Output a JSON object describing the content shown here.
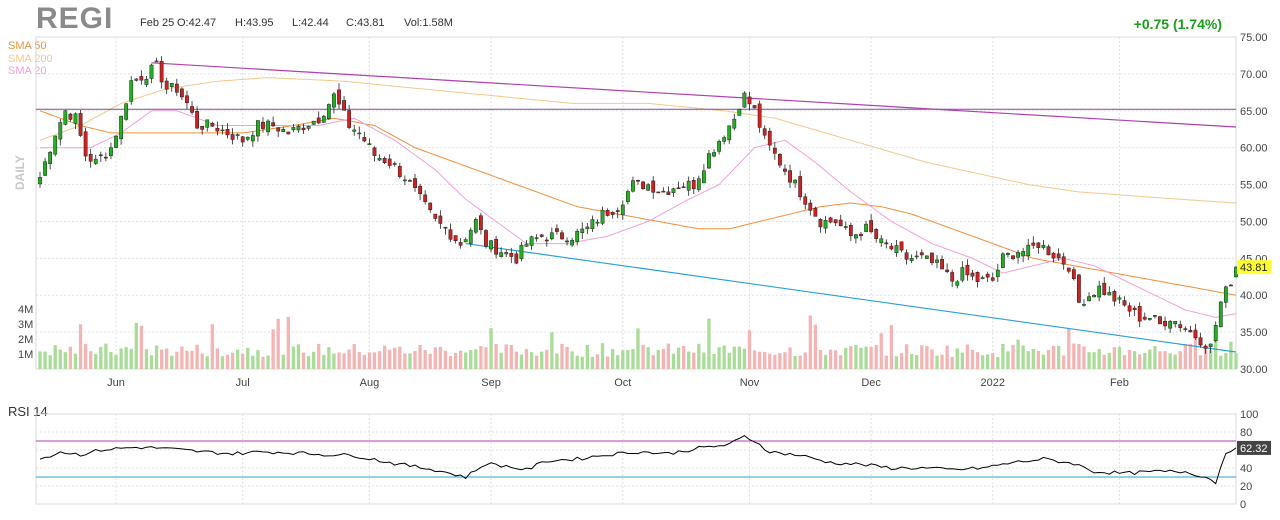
{
  "header": {
    "ticker": "REGI",
    "date": "Feb 25",
    "open": "O:42.47",
    "high": "H:43.95",
    "low": "L:42.44",
    "close": "C:43.81",
    "volume": "Vol:1.58M",
    "change": "+0.75 (1.74%)",
    "period": "DAILY"
  },
  "legend": [
    {
      "label": "SMA 50",
      "color": "#f0903a"
    },
    {
      "label": "SMA 200",
      "color": "#f2c98c"
    },
    {
      "label": "SMA 20",
      "color": "#f0a0d8"
    }
  ],
  "colors": {
    "up": "#22b022",
    "down": "#cc2222",
    "vol_up": "#a8dc98",
    "vol_down": "#f4b4b4",
    "sma50": "#f0903a",
    "sma200": "#f2c98c",
    "sma20": "#f0a0d8",
    "upper_trend": "#b040b0",
    "lower_trend": "#2aa0d8",
    "hline": "#7a4aa8",
    "rsi_line": "#000000",
    "rsi_upper": "#b040b0",
    "rsi_lower": "#2aa0d8",
    "last_price_bg": "#ffff33"
  },
  "chart_data": [
    {
      "type": "candlestick",
      "ylim": [
        30,
        75
      ],
      "yticks": [
        "30.00",
        "35.00",
        "40.00",
        "45.00",
        "50.00",
        "55.00",
        "60.00",
        "65.00",
        "70.00",
        "75.00"
      ],
      "xticks": [
        {
          "label": "Jun",
          "index": 15
        },
        {
          "label": "Jul",
          "index": 40
        },
        {
          "label": "Aug",
          "index": 65
        },
        {
          "label": "Sep",
          "index": 89
        },
        {
          "label": "Oct",
          "index": 115
        },
        {
          "label": "Nov",
          "index": 140
        },
        {
          "label": "Dec",
          "index": 164
        },
        {
          "label": "2022",
          "index": 188
        },
        {
          "label": "Feb",
          "index": 213
        }
      ],
      "last_price": "43.81",
      "volume_labels": [
        "4M",
        "3M",
        "2M",
        "1M"
      ],
      "volume_max": 4,
      "close_anchors": [
        [
          0,
          56
        ],
        [
          3,
          62
        ],
        [
          5,
          65
        ],
        [
          7,
          64
        ],
        [
          9,
          59
        ],
        [
          11,
          58
        ],
        [
          14,
          60
        ],
        [
          16,
          64
        ],
        [
          18,
          69
        ],
        [
          21,
          70
        ],
        [
          23,
          71
        ],
        [
          25,
          68
        ],
        [
          27,
          68
        ],
        [
          29,
          66
        ],
        [
          31,
          63
        ],
        [
          34,
          63
        ],
        [
          37,
          62
        ],
        [
          40,
          61
        ],
        [
          43,
          63
        ],
        [
          46,
          63
        ],
        [
          49,
          62
        ],
        [
          52,
          63
        ],
        [
          55,
          64
        ],
        [
          58,
          67
        ],
        [
          61,
          63
        ],
        [
          63,
          62
        ],
        [
          66,
          59
        ],
        [
          69,
          58
        ],
        [
          72,
          56
        ],
        [
          75,
          53
        ],
        [
          78,
          50
        ],
        [
          80,
          49
        ],
        [
          83,
          47
        ],
        [
          86,
          50
        ],
        [
          88,
          47
        ],
        [
          91,
          46
        ],
        [
          94,
          45
        ],
        [
          96,
          47
        ],
        [
          99,
          48
        ],
        [
          102,
          48
        ],
        [
          105,
          48
        ],
        [
          108,
          49
        ],
        [
          111,
          51
        ],
        [
          114,
          52
        ],
        [
          117,
          55
        ],
        [
          120,
          55
        ],
        [
          123,
          54
        ],
        [
          126,
          55
        ],
        [
          129,
          55
        ],
        [
          132,
          59
        ],
        [
          135,
          62
        ],
        [
          137,
          64
        ],
        [
          138,
          66
        ],
        [
          139,
          67
        ],
        [
          141,
          65
        ],
        [
          143,
          61
        ],
        [
          145,
          59
        ],
        [
          147,
          57
        ],
        [
          149,
          55
        ],
        [
          151,
          53
        ],
        [
          154,
          50
        ],
        [
          157,
          50
        ],
        [
          160,
          48
        ],
        [
          163,
          49
        ],
        [
          166,
          47
        ],
        [
          169,
          46
        ],
        [
          171,
          45
        ],
        [
          174,
          45
        ],
        [
          177,
          44
        ],
        [
          180,
          42
        ],
        [
          182,
          43
        ],
        [
          185,
          42
        ],
        [
          188,
          42
        ],
        [
          190,
          45
        ],
        [
          193,
          46
        ],
        [
          195,
          46
        ],
        [
          197,
          47
        ],
        [
          199,
          46
        ],
        [
          201,
          45
        ],
        [
          203,
          44
        ],
        [
          205,
          39
        ],
        [
          207,
          40
        ],
        [
          209,
          41
        ],
        [
          211,
          40
        ],
        [
          213,
          39
        ],
        [
          215,
          38
        ],
        [
          217,
          37
        ],
        [
          219,
          37
        ],
        [
          221,
          36
        ],
        [
          223,
          37
        ],
        [
          225,
          36
        ],
        [
          227,
          35
        ],
        [
          229,
          34
        ],
        [
          231,
          33
        ],
        [
          233,
          39
        ],
        [
          235,
          42
        ],
        [
          236,
          43.81
        ]
      ],
      "sma20_anchors": [
        [
          0,
          60
        ],
        [
          10,
          60
        ],
        [
          16,
          62
        ],
        [
          22,
          65
        ],
        [
          27,
          65
        ],
        [
          35,
          63
        ],
        [
          45,
          63
        ],
        [
          55,
          63
        ],
        [
          62,
          64
        ],
        [
          70,
          61
        ],
        [
          78,
          57
        ],
        [
          84,
          53
        ],
        [
          90,
          50
        ],
        [
          96,
          47
        ],
        [
          104,
          47
        ],
        [
          112,
          48
        ],
        [
          120,
          50
        ],
        [
          128,
          53
        ],
        [
          134,
          55
        ],
        [
          141,
          60
        ],
        [
          147,
          61
        ],
        [
          153,
          58
        ],
        [
          160,
          54
        ],
        [
          168,
          50
        ],
        [
          176,
          47
        ],
        [
          184,
          45
        ],
        [
          190,
          43
        ],
        [
          196,
          44
        ],
        [
          202,
          45
        ],
        [
          208,
          44
        ],
        [
          214,
          42
        ],
        [
          220,
          40
        ],
        [
          226,
          38
        ],
        [
          232,
          37
        ],
        [
          236,
          37.5
        ]
      ],
      "sma50_anchors": [
        [
          0,
          65
        ],
        [
          8,
          63
        ],
        [
          14,
          62
        ],
        [
          20,
          62
        ],
        [
          30,
          62
        ],
        [
          40,
          62
        ],
        [
          50,
          63
        ],
        [
          58,
          64
        ],
        [
          66,
          63
        ],
        [
          74,
          60
        ],
        [
          82,
          58
        ],
        [
          90,
          56
        ],
        [
          98,
          54
        ],
        [
          106,
          52
        ],
        [
          114,
          51
        ],
        [
          122,
          50
        ],
        [
          130,
          49
        ],
        [
          136,
          49
        ],
        [
          142,
          50
        ],
        [
          148,
          51
        ],
        [
          154,
          52
        ],
        [
          160,
          52.5
        ],
        [
          166,
          52
        ],
        [
          172,
          51
        ],
        [
          180,
          49
        ],
        [
          188,
          47
        ],
        [
          196,
          45
        ],
        [
          204,
          44
        ],
        [
          212,
          43
        ],
        [
          220,
          42
        ],
        [
          228,
          41
        ],
        [
          236,
          40
        ]
      ],
      "sma200_anchors": [
        [
          0,
          61
        ],
        [
          8,
          63
        ],
        [
          16,
          66
        ],
        [
          25,
          68
        ],
        [
          35,
          69
        ],
        [
          45,
          69.5
        ],
        [
          60,
          69
        ],
        [
          75,
          68
        ],
        [
          90,
          67
        ],
        [
          105,
          66
        ],
        [
          120,
          66
        ],
        [
          135,
          65
        ],
        [
          145,
          64
        ],
        [
          155,
          62
        ],
        [
          165,
          60
        ],
        [
          175,
          58
        ],
        [
          185,
          56.5
        ],
        [
          195,
          55
        ],
        [
          205,
          54
        ],
        [
          215,
          53.5
        ],
        [
          225,
          53
        ],
        [
          236,
          52.5
        ]
      ],
      "trendlines": [
        {
          "name": "upper",
          "from": [
            22,
            71.5
          ],
          "to": [
            236,
            62.8
          ]
        },
        {
          "name": "lower",
          "from": [
            84,
            47.0
          ],
          "to": [
            236,
            32.3
          ]
        }
      ],
      "hline": 65.2
    },
    {
      "type": "line",
      "title": "RSI 14",
      "ylim": [
        0,
        100
      ],
      "yticks": [
        "0",
        "20",
        "40",
        "60",
        "80",
        "100"
      ],
      "levels": [
        70,
        30
      ],
      "last_value": "62.32",
      "rsi_anchors": [
        [
          0,
          50
        ],
        [
          4,
          58
        ],
        [
          8,
          55
        ],
        [
          12,
          60
        ],
        [
          16,
          62
        ],
        [
          20,
          63
        ],
        [
          24,
          62
        ],
        [
          28,
          60
        ],
        [
          32,
          58
        ],
        [
          38,
          56
        ],
        [
          44,
          58
        ],
        [
          50,
          57
        ],
        [
          56,
          55
        ],
        [
          62,
          54
        ],
        [
          70,
          45
        ],
        [
          78,
          38
        ],
        [
          84,
          30
        ],
        [
          88,
          45
        ],
        [
          92,
          42
        ],
        [
          96,
          38
        ],
        [
          100,
          48
        ],
        [
          106,
          50
        ],
        [
          112,
          55
        ],
        [
          118,
          58
        ],
        [
          124,
          56
        ],
        [
          130,
          62
        ],
        [
          136,
          66
        ],
        [
          139,
          75
        ],
        [
          141,
          70
        ],
        [
          144,
          58
        ],
        [
          150,
          54
        ],
        [
          156,
          46
        ],
        [
          162,
          44
        ],
        [
          168,
          40
        ],
        [
          174,
          40
        ],
        [
          180,
          38
        ],
        [
          186,
          40
        ],
        [
          192,
          46
        ],
        [
          198,
          50
        ],
        [
          204,
          45
        ],
        [
          208,
          36
        ],
        [
          214,
          34
        ],
        [
          220,
          36
        ],
        [
          226,
          36
        ],
        [
          230,
          30
        ],
        [
          232,
          24
        ],
        [
          234,
          58
        ],
        [
          236,
          62.32
        ]
      ]
    }
  ]
}
